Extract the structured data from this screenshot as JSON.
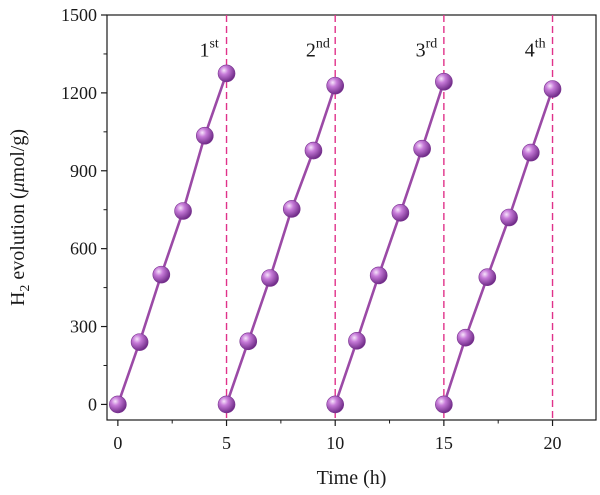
{
  "chart_data": {
    "type": "line",
    "xlabel": "Time (h)",
    "ylabel_parts": {
      "main": "H",
      "sub": "2",
      "rest": " evolution (",
      "mu": "μ",
      "unit": "mol/g)"
    },
    "xlim": [
      -0.5,
      22
    ],
    "ylim": [
      -60,
      1500
    ],
    "x_ticks": [
      0,
      5,
      10,
      15,
      20
    ],
    "y_ticks": [
      0,
      300,
      600,
      900,
      1200,
      1500
    ],
    "grid": false,
    "legend": "none",
    "series_color": "#9b4aa6",
    "marker_color": "#a94cc0",
    "cycle_line_color": "#e0328a",
    "cycle_lines_x": [
      5,
      10,
      15,
      20
    ],
    "cycles": [
      {
        "label": "1",
        "suffix": "st",
        "label_x": 4.2,
        "label_y": 1340,
        "x": [
          0,
          1,
          2,
          3,
          4,
          5
        ],
        "y": [
          0,
          240,
          500,
          745,
          1035,
          1275
        ]
      },
      {
        "label": "2",
        "suffix": "nd",
        "label_x": 9.2,
        "label_y": 1340,
        "x": [
          5,
          6,
          7,
          8,
          9,
          10
        ],
        "y": [
          0,
          243,
          487,
          753,
          978,
          1228
        ]
      },
      {
        "label": "3",
        "suffix": "rd",
        "label_x": 14.2,
        "label_y": 1340,
        "x": [
          10,
          11,
          12,
          13,
          14,
          15
        ],
        "y": [
          0,
          245,
          497,
          738,
          985,
          1243
        ]
      },
      {
        "label": "4",
        "suffix": "th",
        "label_x": 19.2,
        "label_y": 1340,
        "x": [
          15,
          16,
          17,
          18,
          19,
          20
        ],
        "y": [
          0,
          257,
          490,
          720,
          970,
          1215
        ]
      }
    ]
  }
}
